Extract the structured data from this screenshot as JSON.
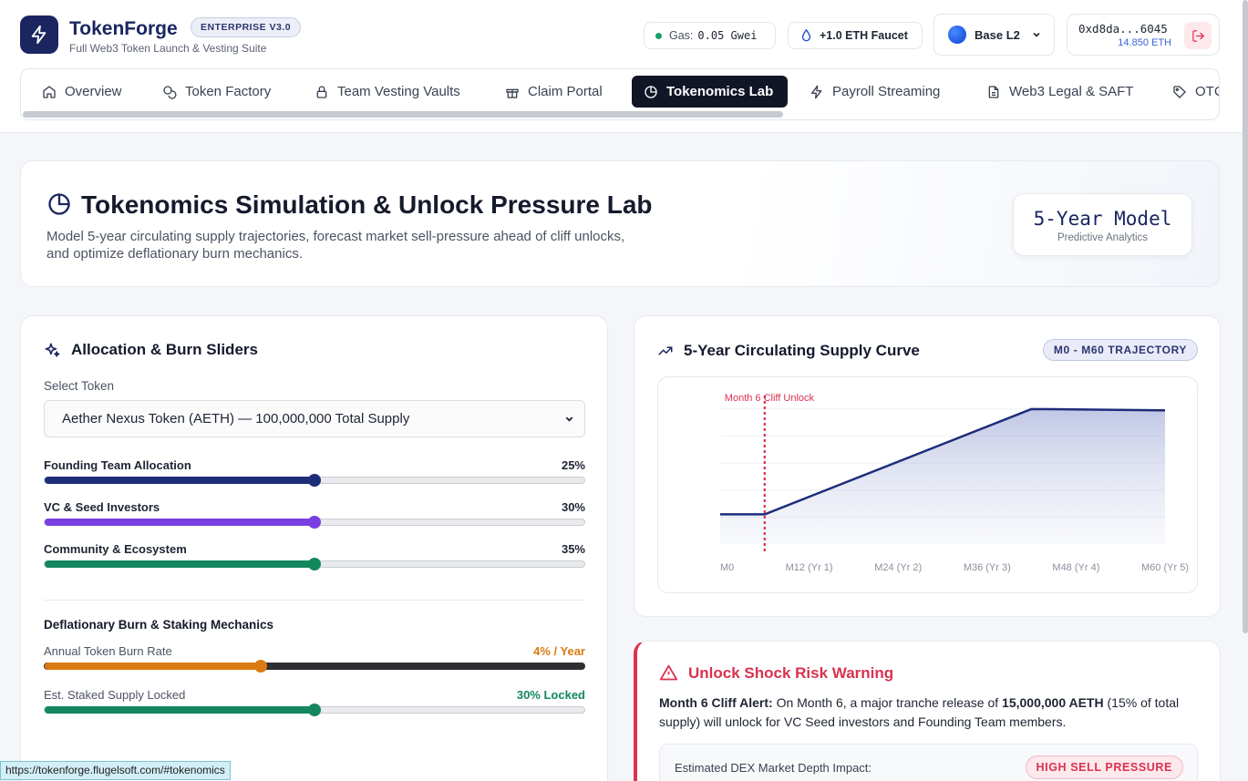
{
  "header": {
    "brand": "TokenForge",
    "edition": "ENTERPRISE V3.0",
    "tagline": "Full Web3 Token Launch & Vesting Suite",
    "gas_label": "Gas:",
    "gas_value": "0.05 Gwei",
    "faucet_label": "+1.0 ETH Faucet",
    "network": "Base L2",
    "wallet_address": "0xd8da...6045",
    "wallet_balance": "14.850 ETH"
  },
  "tabs": [
    {
      "label": "Overview",
      "icon": "home-icon"
    },
    {
      "label": "Token Factory",
      "icon": "coins-icon"
    },
    {
      "label": "Team Vesting Vaults",
      "icon": "lock-icon"
    },
    {
      "label": "Claim Portal",
      "icon": "gift-icon"
    },
    {
      "label": "Tokenomics Lab",
      "icon": "pie-chart-icon",
      "active": true
    },
    {
      "label": "Payroll Streaming",
      "icon": "lightning-icon"
    },
    {
      "label": "Web3 Legal & SAFT",
      "icon": "document-icon"
    },
    {
      "label": "OTC",
      "icon": "tag-icon"
    }
  ],
  "hero": {
    "title": "Tokenomics Simulation & Unlock Pressure Lab",
    "description": "Model 5-year circulating supply trajectories, forecast market sell-pressure ahead of cliff unlocks, and optimize deflationary burn mechanics.",
    "model_value": "5-Year Model",
    "model_label": "Predictive Analytics"
  },
  "allocation": {
    "title": "Allocation & Burn Sliders",
    "select_label": "Select Token",
    "select_value": "Aether Nexus Token (AETH) — 100,000,000 Total Supply",
    "sliders": [
      {
        "label": "Founding Team Allocation",
        "value_text": "25%",
        "level": 0.5,
        "color": "#1e2d7a"
      },
      {
        "label": "VC & Seed Investors",
        "value_text": "30%",
        "level": 0.5,
        "color": "#7a3fe0"
      },
      {
        "label": "Community & Ecosystem",
        "value_text": "35%",
        "level": 0.5,
        "color": "#13875e"
      }
    ],
    "burn_title": "Deflationary Burn & Staking Mechanics",
    "burn_sliders": [
      {
        "label": "Annual Token Burn Rate",
        "value_text": "4% / Year",
        "level": 0.4,
        "color": "#d97a12",
        "text_color": "#d97a12"
      },
      {
        "label": "Est. Staked Supply Locked",
        "value_text": "30% Locked",
        "level": 0.5,
        "color": "#13875e",
        "text_color": "#13875e"
      }
    ]
  },
  "supply_chart": {
    "title": "5-Year Circulating Supply Curve",
    "badge": "M0 - M60 TRAJECTORY"
  },
  "chart_data": {
    "type": "area",
    "x": [
      0,
      6,
      42,
      60
    ],
    "y": [
      0.22,
      0.22,
      1.0,
      0.99
    ],
    "x_ticks": [
      "M0",
      "M12 (Yr 1)",
      "M24 (Yr 2)",
      "M36 (Yr 3)",
      "M48 (Yr 4)",
      "M60 (Yr 5)"
    ],
    "x_tick_values": [
      0,
      12,
      24,
      36,
      48,
      60
    ],
    "xlim": [
      0,
      60
    ],
    "ylim": [
      0,
      1.1
    ],
    "annotation": {
      "label": "Month 6 Cliff Unlock",
      "x": 6
    },
    "grid": true,
    "line_color": "#1e2d7a",
    "annotation_color": "#d8324f"
  },
  "warning": {
    "title": "Unlock Shock Risk Warning",
    "alert_label": "Month 6 Cliff Alert:",
    "text_1": " On Month 6, a major tranche release of ",
    "amount": "15,000,000 AETH",
    "text_2": " (15% of total supply) will unlock for VC Seed investors and Founding Team members.",
    "impact_label": "Estimated DEX Market Depth Impact:",
    "impact_badge": "HIGH SELL PRESSURE"
  },
  "status_url": "https://tokenforge.flugelsoft.com/#tokenomics"
}
